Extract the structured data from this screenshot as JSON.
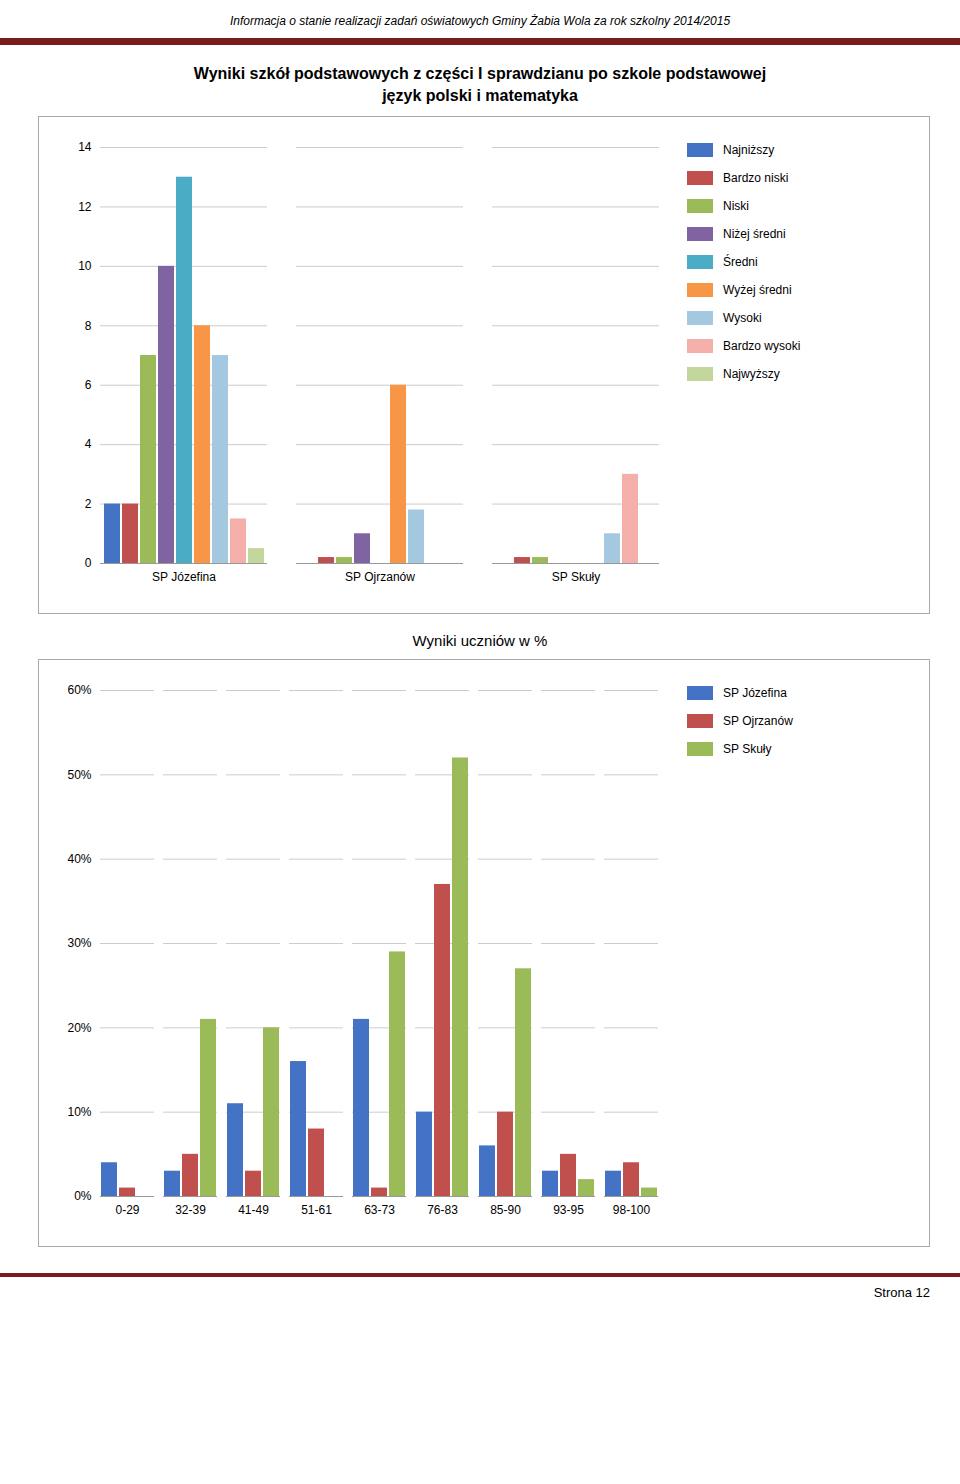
{
  "chart_data": [
    {
      "type": "bar",
      "title": "Wyniki szkół podstawowych z części I sprawdzianu po szkole podstawowej\njęzyk polski i matematyka",
      "annotations": [
        "Informacja o stanie realizacji zadań oświatowych Gminy Żabia Wola za rok szkolny 2014/2015"
      ],
      "categories": [
        "SP Józefina",
        "SP Ojrzanów",
        "SP Skuły"
      ],
      "series": [
        {
          "name": "Najniższy",
          "color": "#4472C4",
          "values": [
            2,
            0,
            0
          ]
        },
        {
          "name": "Bardzo niski",
          "color": "#C0504D",
          "values": [
            2,
            0.2,
            0.2
          ]
        },
        {
          "name": "Niski",
          "color": "#9BBB59",
          "values": [
            7,
            0.2,
            0.2
          ]
        },
        {
          "name": "Niżej średni",
          "color": "#8064A2",
          "values": [
            10,
            1,
            0
          ]
        },
        {
          "name": "Średni",
          "color": "#4BACC6",
          "values": [
            13,
            0,
            0
          ]
        },
        {
          "name": "Wyżej średni",
          "color": "#F79646",
          "values": [
            8,
            6,
            0
          ]
        },
        {
          "name": "Wysoki",
          "color": "#A5C8E1",
          "values": [
            7,
            1.8,
            1
          ]
        },
        {
          "name": "Bardzo wysoki",
          "color": "#F4AFAB",
          "values": [
            1.5,
            0,
            3
          ]
        },
        {
          "name": "Najwyższy",
          "color": "#C3D69B",
          "values": [
            0.5,
            0,
            0
          ]
        }
      ],
      "ylim": [
        0,
        14
      ],
      "yticks": [
        0,
        2,
        4,
        6,
        8,
        10,
        12,
        14
      ],
      "grid": true,
      "legend": "right"
    },
    {
      "type": "bar",
      "title": "Wyniki uczniów w %",
      "annotations": [
        "Strona 12"
      ],
      "categories": [
        "0-29",
        "32-39",
        "41-49",
        "51-61",
        "63-73",
        "76-83",
        "85-90",
        "93-95",
        "98-100"
      ],
      "series": [
        {
          "name": "SP Józefina",
          "color": "#4472C4",
          "values": [
            0.04,
            0.03,
            0.11,
            0.16,
            0.21,
            0.1,
            0.06,
            0.03,
            0.03
          ]
        },
        {
          "name": "SP Ojrzanów",
          "color": "#C0504D",
          "values": [
            0.01,
            0.05,
            0.03,
            0.08,
            0.01,
            0.37,
            0.1,
            0.05,
            0.04
          ]
        },
        {
          "name": "SP Skuły",
          "color": "#9BBB59",
          "values": [
            0.0,
            0.21,
            0.2,
            0.0,
            0.29,
            0.52,
            0.27,
            0.02,
            0.01
          ]
        }
      ],
      "ylim": [
        0,
        0.6
      ],
      "yticks": [
        {
          "value": 0.0,
          "label": "0%"
        },
        {
          "value": 0.1,
          "label": "10%"
        },
        {
          "value": 0.2,
          "label": "20%"
        },
        {
          "value": 0.3,
          "label": "30%"
        },
        {
          "value": 0.4,
          "label": "40%"
        },
        {
          "value": 0.5,
          "label": "50%"
        },
        {
          "value": 0.6,
          "label": "60%"
        }
      ],
      "grid": true,
      "legend": "right"
    }
  ]
}
